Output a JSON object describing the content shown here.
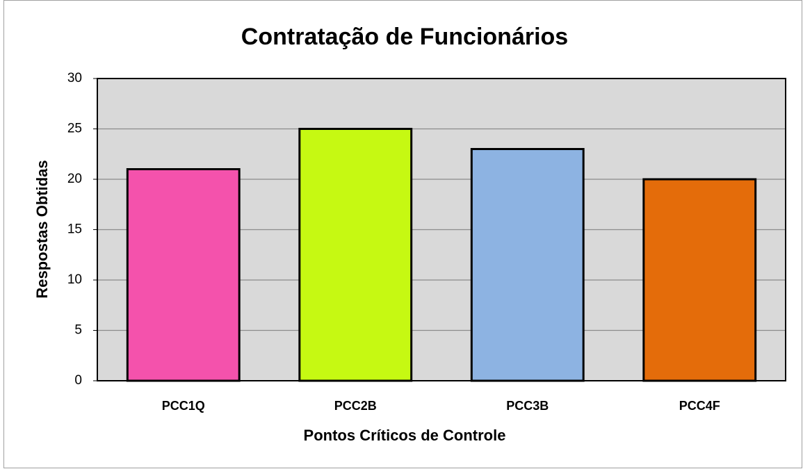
{
  "chart_data": {
    "type": "bar",
    "title": "Contratação de Funcionários",
    "xlabel": "Pontos Críticos de Controle",
    "ylabel": "Respostas Obtidas",
    "categories": [
      "PCC1Q",
      "PCC2B",
      "PCC3B",
      "PCC4F"
    ],
    "values": [
      21,
      25,
      23,
      20
    ],
    "colors": [
      "#f452ac",
      "#c6f912",
      "#8db3e2",
      "#e46c0a"
    ],
    "ylim": [
      0,
      30
    ],
    "yticks": [
      0,
      5,
      10,
      15,
      20,
      25,
      30
    ],
    "grid": true
  }
}
